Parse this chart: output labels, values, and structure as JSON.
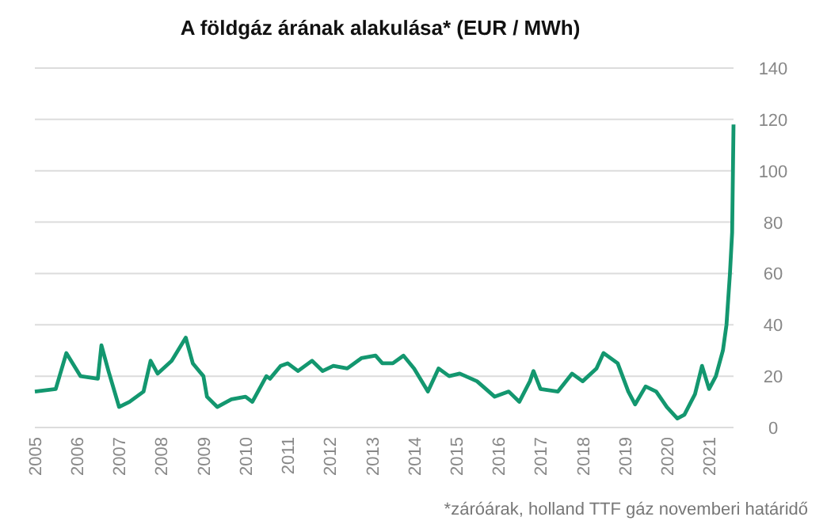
{
  "chart_data": {
    "type": "line",
    "title": "A földgáz árának alakulása* (EUR / MWh)",
    "x": [
      "2005-01",
      "2005-07",
      "2005-10",
      "2006-02",
      "2006-07",
      "2006-08",
      "2006-10",
      "2007-01",
      "2007-04",
      "2007-08",
      "2007-10",
      "2007-12",
      "2008-04",
      "2008-08",
      "2008-10",
      "2009-01",
      "2009-02",
      "2009-05",
      "2009-09",
      "2010-01",
      "2010-03",
      "2010-07",
      "2010-08",
      "2010-11",
      "2011-01",
      "2011-04",
      "2011-08",
      "2011-11",
      "2012-02",
      "2012-06",
      "2012-10",
      "2013-02",
      "2013-04",
      "2013-07",
      "2013-10",
      "2014-01",
      "2014-05",
      "2014-08",
      "2014-11",
      "2015-02",
      "2015-07",
      "2015-12",
      "2016-04",
      "2016-07",
      "2016-10",
      "2016-11",
      "2017-01",
      "2017-06",
      "2017-10",
      "2018-01",
      "2018-05",
      "2018-07",
      "2018-11",
      "2019-02",
      "2019-04",
      "2019-07",
      "2019-10",
      "2020-01",
      "2020-04",
      "2020-06",
      "2020-09",
      "2020-11",
      "2021-01",
      "2021-03",
      "2021-05",
      "2021-06",
      "2021-07",
      "2021-07-20",
      "2021-08"
    ],
    "series": [
      {
        "color": "#13976f",
        "values": [
          14,
          15,
          29,
          20,
          19,
          32,
          22,
          8,
          10,
          14,
          26,
          21,
          26,
          35,
          25,
          20,
          12,
          8,
          11,
          12,
          10,
          20,
          19,
          24,
          25,
          22,
          26,
          22,
          24,
          23,
          27,
          28,
          25,
          25,
          28,
          23,
          14,
          23,
          20,
          21,
          18,
          12,
          14,
          10,
          18,
          22,
          15,
          14,
          21,
          18,
          23,
          29,
          25,
          14,
          9,
          16,
          14,
          8,
          3.5,
          5,
          13,
          24,
          15,
          20,
          30,
          40,
          60,
          76,
          118
        ]
      }
    ],
    "xlim": [
      "2005-01",
      "2021-08"
    ],
    "xticks": [
      "2005",
      "2006",
      "2007",
      "2008",
      "2009",
      "2010",
      "2011",
      "2012",
      "2013",
      "2014",
      "2015",
      "2016",
      "2017",
      "2018",
      "2019",
      "2020",
      "2021"
    ],
    "ylim": [
      0,
      140
    ],
    "yticks": [
      0,
      20,
      40,
      60,
      80,
      100,
      120,
      140
    ],
    "grid": "y",
    "marker": "none",
    "line_style": "solid",
    "annotations": [
      "*záróárak, holland TTF gáz novemberi határidő"
    ]
  }
}
